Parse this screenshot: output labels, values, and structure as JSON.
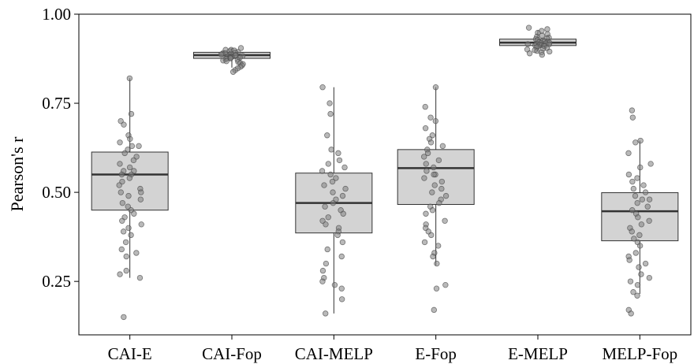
{
  "chart_data": {
    "type": "box",
    "ylabel": "Pearson's r",
    "xlabel": "",
    "ylim": [
      0.1,
      1.0
    ],
    "yticks": [
      0.25,
      0.5,
      0.75,
      1.0
    ],
    "ytick_labels": [
      "0.25",
      "0.50",
      "0.75",
      "1.00"
    ],
    "grid": false,
    "categories": [
      "CAI-E",
      "CAI-Fop",
      "CAI-MELP",
      "E-Fop",
      "E-MELP",
      "MELP-Fop"
    ],
    "boxes": [
      {
        "label": "CAI-E",
        "whisker_low": 0.26,
        "q1": 0.45,
        "median": 0.55,
        "q3": 0.613,
        "whisker_high": 0.82
      },
      {
        "label": "CAI-Fop",
        "whisker_low": 0.85,
        "q1": 0.876,
        "median": 0.885,
        "q3": 0.893,
        "whisker_high": 0.905
      },
      {
        "label": "CAI-MELP",
        "whisker_low": 0.16,
        "q1": 0.386,
        "median": 0.47,
        "q3": 0.554,
        "whisker_high": 0.795
      },
      {
        "label": "E-Fop",
        "whisker_low": 0.295,
        "q1": 0.466,
        "median": 0.568,
        "q3": 0.62,
        "whisker_high": 0.795
      },
      {
        "label": "E-MELP",
        "whisker_low": 0.895,
        "q1": 0.912,
        "median": 0.92,
        "q3": 0.93,
        "whisker_high": 0.955
      },
      {
        "label": "MELP-Fop",
        "whisker_low": 0.215,
        "q1": 0.364,
        "median": 0.447,
        "q3": 0.499,
        "whisker_high": 0.645
      }
    ],
    "points": [
      [
        0.82,
        0.72,
        0.7,
        0.69,
        0.66,
        0.65,
        0.64,
        0.63,
        0.63,
        0.62,
        0.61,
        0.6,
        0.59,
        0.58,
        0.57,
        0.56,
        0.56,
        0.55,
        0.55,
        0.54,
        0.53,
        0.52,
        0.51,
        0.5,
        0.5,
        0.49,
        0.48,
        0.47,
        0.46,
        0.45,
        0.44,
        0.43,
        0.42,
        0.41,
        0.4,
        0.39,
        0.38,
        0.36,
        0.34,
        0.33,
        0.32,
        0.28,
        0.27,
        0.26,
        0.15
      ],
      [
        0.905,
        0.9,
        0.9,
        0.898,
        0.896,
        0.894,
        0.892,
        0.891,
        0.89,
        0.889,
        0.888,
        0.887,
        0.886,
        0.885,
        0.884,
        0.883,
        0.882,
        0.881,
        0.88,
        0.879,
        0.878,
        0.877,
        0.876,
        0.875,
        0.874,
        0.872,
        0.87,
        0.868,
        0.866,
        0.863,
        0.86,
        0.856,
        0.852,
        0.848,
        0.843,
        0.838
      ],
      [
        0.795,
        0.75,
        0.72,
        0.66,
        0.62,
        0.61,
        0.59,
        0.58,
        0.57,
        0.56,
        0.55,
        0.54,
        0.53,
        0.52,
        0.51,
        0.5,
        0.49,
        0.48,
        0.47,
        0.46,
        0.45,
        0.44,
        0.43,
        0.42,
        0.41,
        0.4,
        0.39,
        0.38,
        0.36,
        0.34,
        0.32,
        0.3,
        0.28,
        0.26,
        0.25,
        0.24,
        0.23,
        0.2,
        0.16
      ],
      [
        0.795,
        0.74,
        0.71,
        0.7,
        0.68,
        0.66,
        0.65,
        0.64,
        0.63,
        0.62,
        0.61,
        0.6,
        0.59,
        0.58,
        0.57,
        0.56,
        0.55,
        0.55,
        0.54,
        0.53,
        0.52,
        0.51,
        0.5,
        0.49,
        0.48,
        0.47,
        0.46,
        0.45,
        0.44,
        0.42,
        0.41,
        0.4,
        0.39,
        0.38,
        0.36,
        0.35,
        0.33,
        0.32,
        0.3,
        0.24,
        0.23,
        0.17
      ],
      [
        0.962,
        0.958,
        0.953,
        0.948,
        0.944,
        0.94,
        0.937,
        0.934,
        0.932,
        0.93,
        0.928,
        0.926,
        0.924,
        0.922,
        0.921,
        0.92,
        0.919,
        0.918,
        0.917,
        0.916,
        0.915,
        0.914,
        0.913,
        0.912,
        0.911,
        0.91,
        0.909,
        0.907,
        0.905,
        0.903,
        0.901,
        0.899,
        0.897,
        0.895,
        0.893,
        0.89,
        0.886
      ],
      [
        0.73,
        0.71,
        0.645,
        0.64,
        0.61,
        0.58,
        0.57,
        0.55,
        0.54,
        0.53,
        0.52,
        0.51,
        0.5,
        0.49,
        0.48,
        0.48,
        0.47,
        0.46,
        0.45,
        0.44,
        0.43,
        0.42,
        0.41,
        0.4,
        0.39,
        0.38,
        0.37,
        0.36,
        0.35,
        0.33,
        0.32,
        0.31,
        0.3,
        0.29,
        0.27,
        0.26,
        0.25,
        0.24,
        0.22,
        0.21,
        0.17,
        0.16
      ]
    ],
    "colors": {
      "box_fill": "#d3d3d3",
      "box_stroke": "#333333",
      "point_fill": "#7f7f7f",
      "point_stroke": "#4a4a4a"
    }
  }
}
